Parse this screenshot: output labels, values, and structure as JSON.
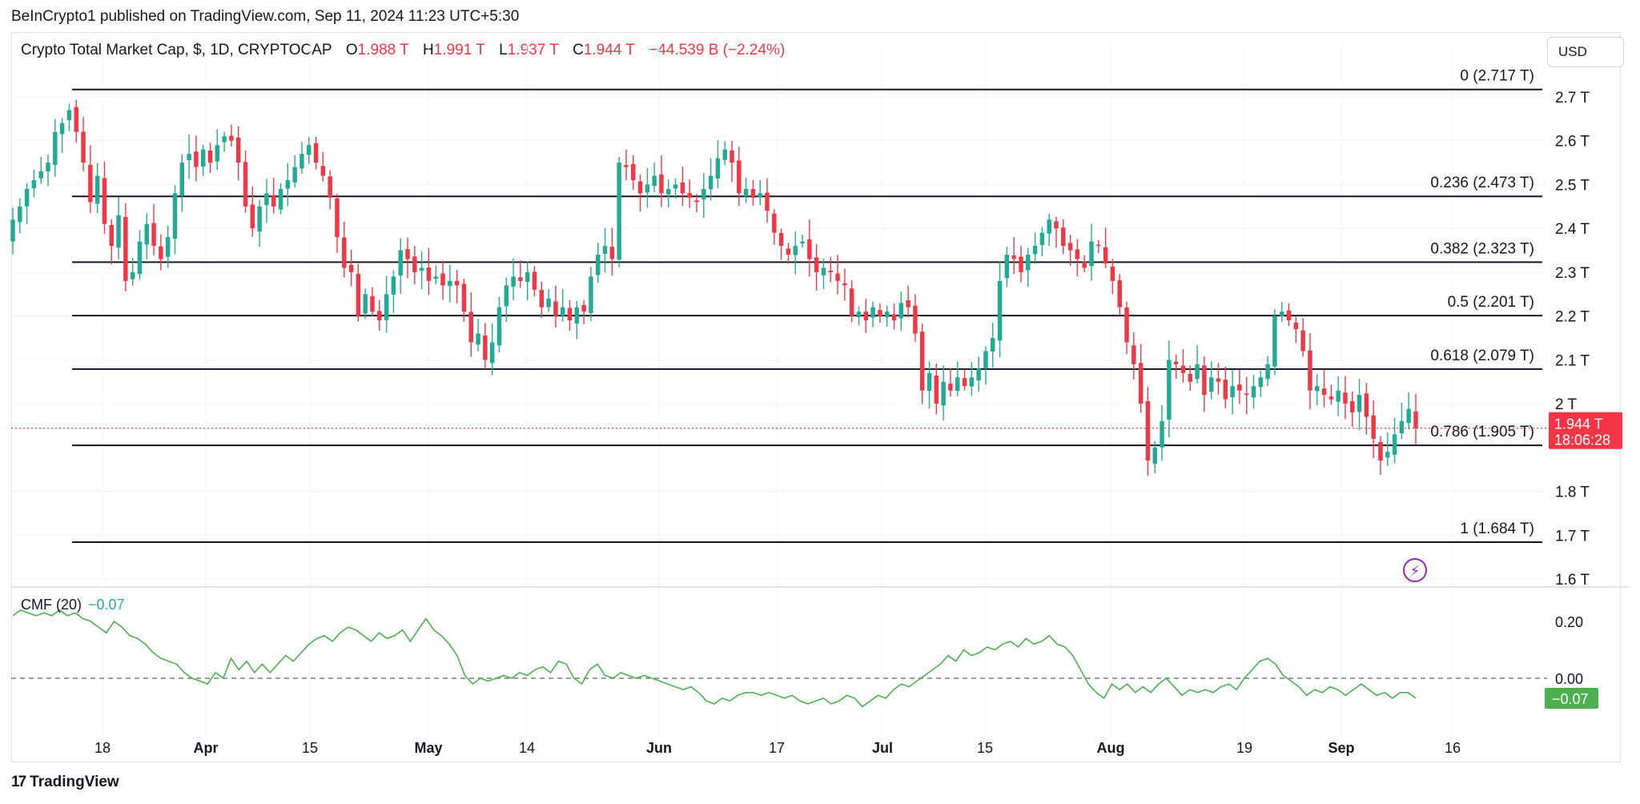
{
  "header": {
    "published": "BeInCrypto1 published on TradingView.com, Sep 11, 2024 11:23 UTC+5:30"
  },
  "legend": {
    "symbol": "Crypto Total Market Cap, $, 1D, CRYPTOCAP",
    "o_label": "O",
    "o_value": "1.988 T",
    "h_label": "H",
    "h_value": "1.991 T",
    "l_label": "L",
    "l_value": "1.937 T",
    "c_label": "C",
    "c_value": "1.944 T",
    "change": "−44.539 B (−2.24%)"
  },
  "currency": "USD",
  "price_badge": {
    "price": "1.944 T",
    "countdown": "18:06:28"
  },
  "cmf": {
    "label": "CMF (20)",
    "value": "−0.07",
    "badge": "−0.07"
  },
  "footer": {
    "brand": "TradingView"
  },
  "colors": {
    "up": "#22ab94",
    "down": "#f23645",
    "line": "#131722",
    "cmf": "#4caf50"
  },
  "chart_data": {
    "type": "candlestick",
    "title": "Crypto Total Market Cap, $, 1D, CRYPTOCAP",
    "x_ticks": [
      "18",
      "Apr",
      "15",
      "May",
      "14",
      "Jun",
      "17",
      "Jul",
      "15",
      "Aug",
      "19",
      "Sep",
      "16"
    ],
    "y_ticks": [
      "2.7 T",
      "2.6 T",
      "2.5 T",
      "2.4 T",
      "2.3 T",
      "2.2 T",
      "2.1 T",
      "2 T",
      "1.8 T",
      "1.7 T",
      "1.6 T"
    ],
    "ylim": [
      1.6,
      2.75
    ],
    "fib_levels": [
      {
        "label": "0 (2.717 T)",
        "value": 2.717
      },
      {
        "label": "0.236 (2.473 T)",
        "value": 2.473
      },
      {
        "label": "0.382 (2.323 T)",
        "value": 2.323
      },
      {
        "label": "0.5 (2.201 T)",
        "value": 2.201
      },
      {
        "label": "0.618 (2.079 T)",
        "value": 2.079
      },
      {
        "label": "0.786 (1.905 T)",
        "value": 1.905
      },
      {
        "label": "1 (1.684 T)",
        "value": 1.684
      }
    ],
    "last_price": 1.944,
    "closes": [
      2.42,
      2.45,
      2.49,
      2.51,
      2.53,
      2.55,
      2.62,
      2.64,
      2.67,
      2.62,
      2.55,
      2.46,
      2.52,
      2.41,
      2.36,
      2.43,
      2.28,
      2.3,
      2.37,
      2.41,
      2.36,
      2.33,
      2.38,
      2.48,
      2.55,
      2.57,
      2.54,
      2.58,
      2.55,
      2.59,
      2.61,
      2.6,
      2.55,
      2.45,
      2.4,
      2.45,
      2.48,
      2.45,
      2.49,
      2.51,
      2.54,
      2.57,
      2.59,
      2.55,
      2.52,
      2.47,
      2.38,
      2.31,
      2.3,
      2.2,
      2.25,
      2.21,
      2.19,
      2.25,
      2.29,
      2.35,
      2.33,
      2.3,
      2.31,
      2.28,
      2.29,
      2.27,
      2.28,
      2.27,
      2.21,
      2.14,
      2.16,
      2.1,
      2.14,
      2.22,
      2.27,
      2.29,
      2.28,
      2.3,
      2.26,
      2.22,
      2.24,
      2.2,
      2.22,
      2.19,
      2.22,
      2.21,
      2.29,
      2.34,
      2.36,
      2.33,
      2.55,
      2.54,
      2.51,
      2.48,
      2.5,
      2.52,
      2.48,
      2.49,
      2.5,
      2.48,
      2.47,
      2.46,
      2.49,
      2.52,
      2.56,
      2.58,
      2.55,
      2.48,
      2.49,
      2.47,
      2.48,
      2.44,
      2.39,
      2.36,
      2.34,
      2.36,
      2.37,
      2.33,
      2.3,
      2.31,
      2.3,
      2.28,
      2.27,
      2.2,
      2.21,
      2.19,
      2.22,
      2.2,
      2.21,
      2.19,
      2.23,
      2.22,
      2.16,
      2.03,
      2.07,
      2.0,
      2.05,
      2.03,
      2.06,
      2.04,
      2.06,
      2.08,
      2.12,
      2.15,
      2.28,
      2.34,
      2.33,
      2.3,
      2.34,
      2.36,
      2.39,
      2.42,
      2.4,
      2.36,
      2.35,
      2.33,
      2.31,
      2.37,
      2.36,
      2.32,
      2.28,
      2.22,
      2.14,
      2.09,
      2.0,
      1.87,
      1.9,
      1.96,
      2.1,
      2.09,
      2.07,
      2.05,
      2.09,
      2.02,
      2.06,
      2.05,
      2.01,
      2.04,
      2.03,
      2.02,
      2.04,
      2.06,
      2.09,
      2.2,
      2.21,
      2.19,
      2.17,
      2.12,
      2.03,
      2.04,
      2.02,
      2.01,
      2.03,
      2.0,
      1.98,
      2.02,
      1.97,
      1.92,
      1.87,
      1.89,
      1.93,
      1.96,
      1.988,
      1.944
    ],
    "cmf_series": {
      "name": "CMF (20)",
      "ylim": [
        -0.1,
        0.25
      ],
      "y_ticks": [
        "0.20",
        "0.00"
      ],
      "values": [
        0.22,
        0.24,
        0.23,
        0.22,
        0.23,
        0.22,
        0.24,
        0.22,
        0.23,
        0.21,
        0.2,
        0.18,
        0.16,
        0.2,
        0.18,
        0.15,
        0.14,
        0.12,
        0.09,
        0.07,
        0.06,
        0.05,
        0.02,
        0.0,
        -0.01,
        -0.02,
        0.02,
        0.0,
        0.07,
        0.03,
        0.06,
        0.02,
        0.05,
        0.02,
        0.05,
        0.08,
        0.06,
        0.09,
        0.12,
        0.14,
        0.15,
        0.13,
        0.16,
        0.18,
        0.17,
        0.15,
        0.13,
        0.16,
        0.14,
        0.15,
        0.17,
        0.13,
        0.17,
        0.21,
        0.17,
        0.15,
        0.12,
        0.08,
        0.01,
        -0.02,
        0.0,
        -0.01,
        0.0,
        0.01,
        0.0,
        0.02,
        0.01,
        0.03,
        0.04,
        0.02,
        0.06,
        0.05,
        0.0,
        -0.02,
        0.03,
        0.05,
        0.01,
        0.0,
        0.02,
        0.01,
        0.0,
        0.01,
        0.0,
        -0.01,
        -0.02,
        -0.03,
        -0.04,
        -0.03,
        -0.05,
        -0.08,
        -0.09,
        -0.07,
        -0.08,
        -0.06,
        -0.05,
        -0.05,
        -0.06,
        -0.05,
        -0.06,
        -0.07,
        -0.06,
        -0.08,
        -0.09,
        -0.08,
        -0.07,
        -0.09,
        -0.08,
        -0.06,
        -0.07,
        -0.1,
        -0.08,
        -0.06,
        -0.07,
        -0.04,
        -0.02,
        -0.03,
        -0.01,
        0.01,
        0.03,
        0.05,
        0.08,
        0.06,
        0.1,
        0.08,
        0.09,
        0.11,
        0.1,
        0.12,
        0.13,
        0.11,
        0.14,
        0.12,
        0.13,
        0.15,
        0.12,
        0.11,
        0.08,
        0.03,
        -0.02,
        -0.05,
        -0.07,
        -0.02,
        -0.04,
        -0.02,
        -0.05,
        -0.03,
        -0.05,
        -0.02,
        0.0,
        -0.03,
        -0.06,
        -0.04,
        -0.05,
        -0.04,
        -0.05,
        -0.03,
        -0.02,
        -0.04,
        0.0,
        0.03,
        0.06,
        0.07,
        0.05,
        0.01,
        -0.01,
        -0.03,
        -0.06,
        -0.04,
        -0.05,
        -0.03,
        -0.04,
        -0.06,
        -0.04,
        -0.02,
        -0.04,
        -0.06,
        -0.05,
        -0.07,
        -0.05,
        -0.05,
        -0.07
      ]
    }
  }
}
